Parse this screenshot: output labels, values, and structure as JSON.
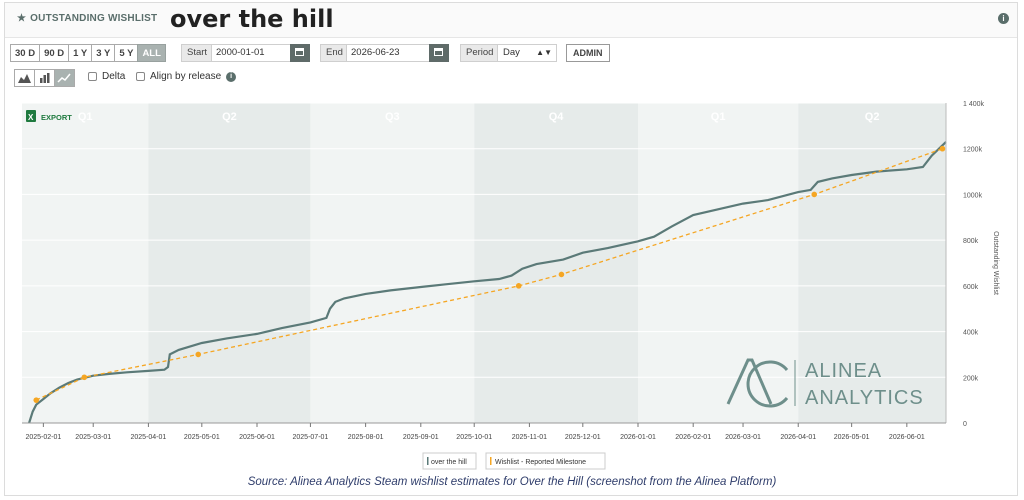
{
  "header": {
    "section_label": "OUTSTANDING WISHLIST",
    "game_title": "over the hill"
  },
  "controls": {
    "range_buttons": [
      "30 D",
      "90 D",
      "1 Y",
      "3 Y",
      "5 Y",
      "ALL"
    ],
    "active_range": "ALL",
    "start_label": "Start",
    "start_value": "2000-01-01",
    "end_label": "End",
    "end_value": "2026-06-23",
    "period_label": "Period",
    "period_value": "Day",
    "admin_label": "ADMIN",
    "delta_label": "Delta",
    "align_label": "Align by release",
    "export_label": "EXPORT"
  },
  "colors": {
    "series": "#5b7a78",
    "milestone": "#f5a623",
    "band_dark": "#e6ebea",
    "band_light": "#f1f4f3"
  },
  "chart_data": {
    "type": "line",
    "title": "",
    "ylabel": "Outstanding Wishlist",
    "x_range": [
      "2025-01-20",
      "2026-06-23"
    ],
    "ylim": [
      0,
      1400000
    ],
    "y_ticks": [
      0,
      200000,
      400000,
      600000,
      800000,
      1000000,
      1200000,
      1400000
    ],
    "y_tick_labels": [
      "0",
      "200k",
      "400k",
      "600k",
      "800k",
      "1000k",
      "1200k",
      "1 400k"
    ],
    "x_ticks": [
      "2025-02-01",
      "2025-03-01",
      "2025-04-01",
      "2025-05-01",
      "2025-06-01",
      "2025-07-01",
      "2025-08-01",
      "2025-09-01",
      "2025-10-01",
      "2025-11-01",
      "2025-12-01",
      "2026-01-01",
      "2026-02-01",
      "2026-03-01",
      "2026-04-01",
      "2026-05-01",
      "2026-06-01"
    ],
    "quarter_bands": [
      {
        "label": "Q1",
        "start": "2025-01-20",
        "end": "2025-04-01"
      },
      {
        "label": "Q2",
        "start": "2025-04-01",
        "end": "2025-07-01"
      },
      {
        "label": "Q3",
        "start": "2025-07-01",
        "end": "2025-10-01"
      },
      {
        "label": "Q4",
        "start": "2025-10-01",
        "end": "2026-01-01"
      },
      {
        "label": "Q1",
        "start": "2026-01-01",
        "end": "2026-04-01"
      },
      {
        "label": "Q2",
        "start": "2026-04-01",
        "end": "2026-06-23"
      }
    ],
    "series": [
      {
        "name": "over the hill",
        "points": [
          [
            "2025-01-24",
            0
          ],
          [
            "2025-01-26",
            50000
          ],
          [
            "2025-01-28",
            80000
          ],
          [
            "2025-02-01",
            105000
          ],
          [
            "2025-02-05",
            130000
          ],
          [
            "2025-02-10",
            155000
          ],
          [
            "2025-02-15",
            175000
          ],
          [
            "2025-02-20",
            190000
          ],
          [
            "2025-03-01",
            207000
          ],
          [
            "2025-03-10",
            215000
          ],
          [
            "2025-03-20",
            222000
          ],
          [
            "2025-04-01",
            228000
          ],
          [
            "2025-04-10",
            233000
          ],
          [
            "2025-04-12",
            245000
          ],
          [
            "2025-04-13",
            300000
          ],
          [
            "2025-04-18",
            320000
          ],
          [
            "2025-05-01",
            350000
          ],
          [
            "2025-05-15",
            370000
          ],
          [
            "2025-06-01",
            390000
          ],
          [
            "2025-06-15",
            415000
          ],
          [
            "2025-07-01",
            440000
          ],
          [
            "2025-07-10",
            460000
          ],
          [
            "2025-07-12",
            500000
          ],
          [
            "2025-07-15",
            530000
          ],
          [
            "2025-07-20",
            545000
          ],
          [
            "2025-08-01",
            565000
          ],
          [
            "2025-08-15",
            580000
          ],
          [
            "2025-09-01",
            595000
          ],
          [
            "2025-09-15",
            607000
          ],
          [
            "2025-10-01",
            620000
          ],
          [
            "2025-10-15",
            630000
          ],
          [
            "2025-10-22",
            645000
          ],
          [
            "2025-10-28",
            675000
          ],
          [
            "2025-11-05",
            695000
          ],
          [
            "2025-11-20",
            715000
          ],
          [
            "2025-12-01",
            745000
          ],
          [
            "2025-12-15",
            765000
          ],
          [
            "2026-01-01",
            795000
          ],
          [
            "2026-01-10",
            815000
          ],
          [
            "2026-01-20",
            860000
          ],
          [
            "2026-02-01",
            910000
          ],
          [
            "2026-02-15",
            935000
          ],
          [
            "2026-03-01",
            960000
          ],
          [
            "2026-03-15",
            975000
          ],
          [
            "2026-04-01",
            1010000
          ],
          [
            "2026-04-08",
            1020000
          ],
          [
            "2026-04-12",
            1055000
          ],
          [
            "2026-04-20",
            1070000
          ],
          [
            "2026-05-01",
            1085000
          ],
          [
            "2026-05-15",
            1100000
          ],
          [
            "2026-06-01",
            1110000
          ],
          [
            "2026-06-10",
            1120000
          ],
          [
            "2026-06-15",
            1170000
          ],
          [
            "2026-06-23",
            1230000
          ]
        ]
      },
      {
        "name": "Wishlist - Reported Milestone",
        "points": [
          [
            "2025-01-28",
            100000
          ],
          [
            "2025-02-24",
            200000
          ],
          [
            "2025-04-29",
            300000
          ],
          [
            "2025-10-26",
            600000
          ],
          [
            "2025-11-19",
            650000
          ],
          [
            "2026-04-10",
            1000000
          ],
          [
            "2026-06-21",
            1200000
          ]
        ]
      }
    ]
  },
  "source_text": "Source: Alinea Analytics Steam wishlist estimates for Over the Hill (screenshot from the Alinea Platform)",
  "watermark": "ALINEA ANALYTICS"
}
